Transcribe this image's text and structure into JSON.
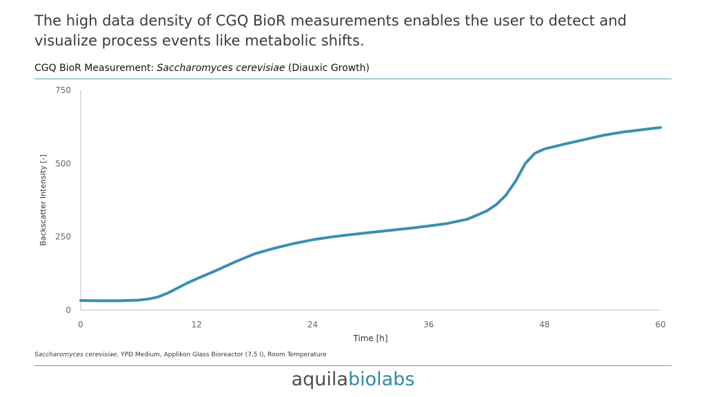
{
  "headline": "The high data density of CGQ BioR measurements enables the user to detect and visualize process events like metabolic shifts.",
  "chart_title": {
    "prefix": "CGQ BioR Measurement: ",
    "organism": "Saccharomyces cerevisiae",
    "suffix": " (Diauxic Growth)"
  },
  "caption": {
    "organism": "Saccharomyces cerevisiae",
    "details": ", YPD Medium, Applikon Glass Bioreactor (7,5 l), Room Temperature"
  },
  "logo": {
    "part1": "aquila",
    "part2": "biolabs"
  },
  "colors": {
    "line": "#3a8fb0",
    "rule": "#5a9eb5",
    "logo_accent": "#2c8aab"
  },
  "chart_data": {
    "type": "line",
    "title": "CGQ BioR Measurement: Saccharomyces cerevisiae (Diauxic Growth)",
    "xlabel": "Time [h]",
    "ylabel": "Backscatter Intensity [-]",
    "xlim": [
      0,
      60
    ],
    "ylim": [
      0,
      750
    ],
    "xticks": [
      0,
      12,
      24,
      36,
      48,
      60
    ],
    "yticks": [
      0,
      250,
      500,
      750
    ],
    "grid": false,
    "series": [
      {
        "name": "Backscatter",
        "x": [
          0,
          2,
          4,
          6,
          7,
          8,
          9,
          10,
          11,
          12,
          14,
          16,
          18,
          20,
          22,
          24,
          26,
          28,
          30,
          32,
          34,
          36,
          38,
          40,
          42,
          43,
          44,
          45,
          46,
          47,
          48,
          50,
          52,
          54,
          56,
          58,
          60
        ],
        "y": [
          33,
          32,
          32,
          34,
          38,
          45,
          58,
          75,
          92,
          107,
          135,
          165,
          192,
          211,
          227,
          240,
          250,
          258,
          265,
          272,
          279,
          287,
          296,
          310,
          338,
          360,
          392,
          440,
          500,
          535,
          550,
          566,
          581,
          596,
          607,
          615,
          623
        ]
      }
    ]
  }
}
